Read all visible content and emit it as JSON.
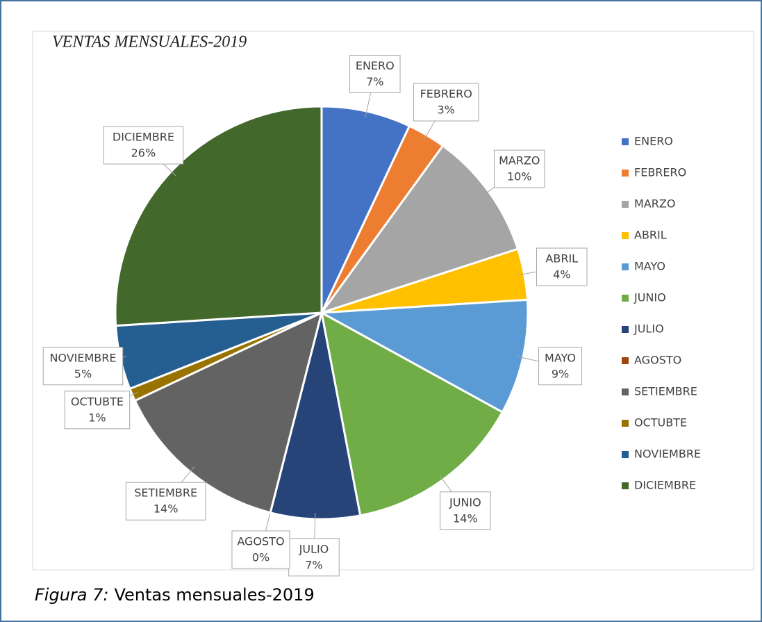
{
  "chart_data": {
    "type": "pie",
    "title": "VENTAS MENSUALES-2019",
    "categories": [
      "ENERO",
      "FEBRERO",
      "MARZO",
      "ABRIL",
      "MAYO",
      "JUNIO",
      "JULIO",
      "AGOSTO",
      "SETIEMBRE",
      "OCTUBTE",
      "NOVIEMBRE",
      "DICIEMBRE"
    ],
    "values": [
      7,
      3,
      10,
      4,
      9,
      14,
      7,
      0,
      14,
      1,
      5,
      26
    ],
    "value_labels": [
      "7%",
      "3%",
      "10%",
      "4%",
      "9%",
      "14%",
      "7%",
      "0%",
      "14%",
      "1%",
      "5%",
      "26%"
    ],
    "colors": [
      "#4472c4",
      "#ed7d31",
      "#a5a5a5",
      "#ffc000",
      "#5b9bd5",
      "#70ad47",
      "#264478",
      "#9e480e",
      "#636363",
      "#997300",
      "#255e91",
      "#43682b"
    ],
    "legend": "right",
    "caption_label": "Figura 7:",
    "caption": "Ventas mensuales-2019"
  }
}
